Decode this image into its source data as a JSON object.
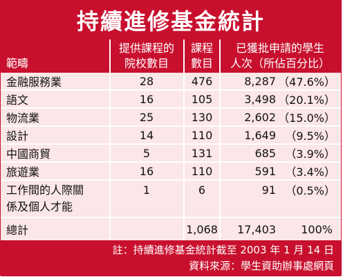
{
  "title": "持續進修基金統計",
  "headers": {
    "category": "範疇",
    "institutions_l1": "提供課程的",
    "institutions_l2": "院校數目",
    "courses_l1": "課程",
    "courses_l2": "數目",
    "applicants_l1": "已獲批申請的學生",
    "applicants_l2": "人次（所佔百分比）"
  },
  "rows": [
    {
      "category": "金融服務業",
      "institutions": "28",
      "courses": "476",
      "count": "8,287",
      "percent": "（47.6%）"
    },
    {
      "category": "語文",
      "institutions": "16",
      "courses": "105",
      "count": "3,498",
      "percent": "（20.1%）"
    },
    {
      "category": "物流業",
      "institutions": "25",
      "courses": "130",
      "count": "2,602",
      "percent": "（15.0%）"
    },
    {
      "category": "設計",
      "institutions": "14",
      "courses": "110",
      "count": "1,649",
      "percent": "（9.5%）"
    },
    {
      "category": "中國商貿",
      "institutions": "5",
      "courses": "131",
      "count": "685",
      "percent": "（3.9%）"
    },
    {
      "category": "旅遊業",
      "institutions": "16",
      "courses": "110",
      "count": "591",
      "percent": "（3.4%）"
    },
    {
      "category_l1": "工作間的人際關",
      "category_l2": "係及個人才能",
      "institutions": "1",
      "courses": "6",
      "count": "91",
      "percent": "（0.5%）"
    }
  ],
  "total": {
    "label": "總計",
    "institutions": "",
    "courses": "1,068",
    "count": "17,403",
    "percent": "100%"
  },
  "footer": {
    "note": "註：持續進修基金統計截至 2003 年 1 月 14 日",
    "source": "資料來源：學生資助辦事處網頁"
  },
  "colors": {
    "accent": "#c8102e",
    "row_bg": "#fbe6e8"
  }
}
